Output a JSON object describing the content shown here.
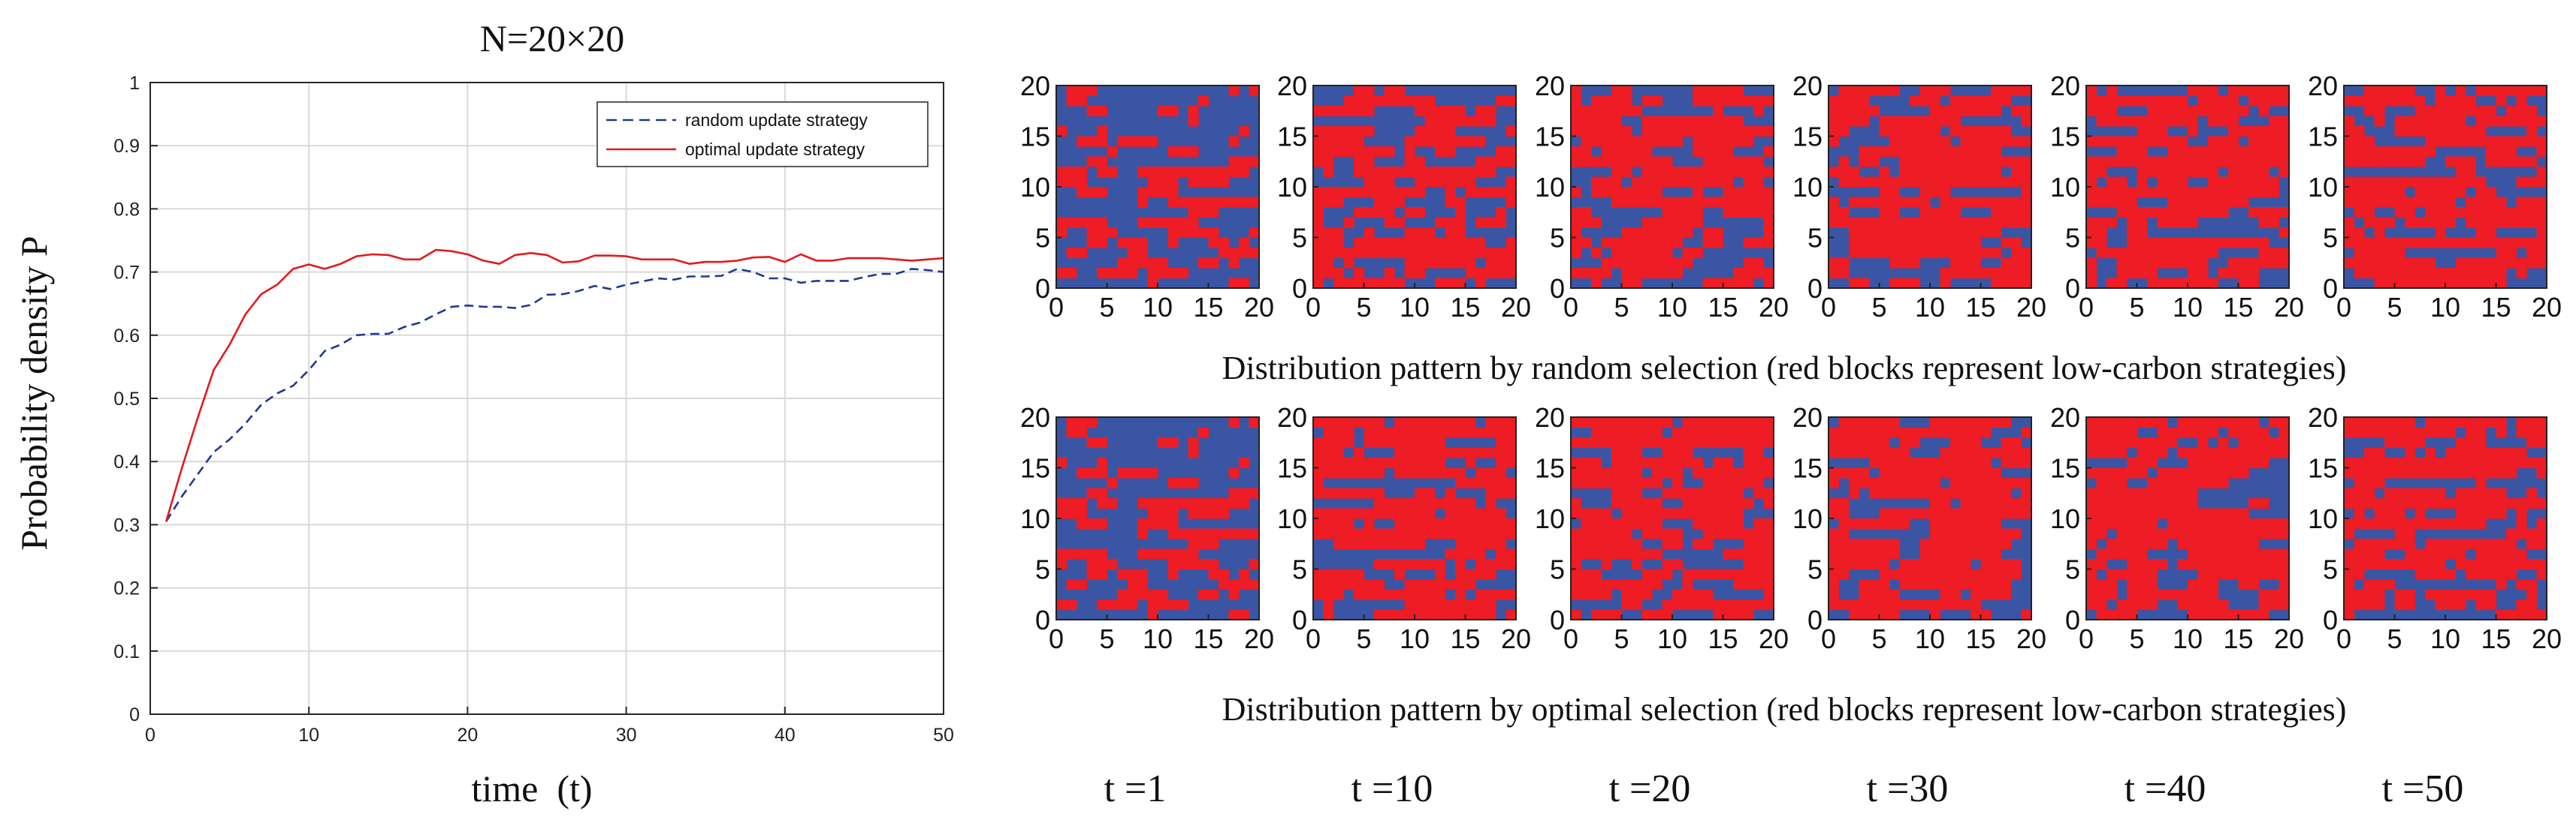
{
  "colors": {
    "red": "#ee1c24",
    "blue": "#3a55a4",
    "random_line": "#1f3a93",
    "optimal_line": "#e31a1c",
    "grid": "#d9d9d9",
    "axis": "#262626"
  },
  "chart_data": [
    {
      "type": "line",
      "title": "N=20×20",
      "xlabel": "time  (t)",
      "ylabel": "Probability density P",
      "xlim": [
        0,
        50
      ],
      "ylim": [
        0,
        1
      ],
      "grid": true,
      "legend_position": "top-right",
      "xticks": [
        0,
        10,
        20,
        30,
        40,
        50
      ],
      "yticks": [
        0,
        0.1,
        0.2,
        0.3,
        0.4,
        0.5,
        0.6,
        0.7,
        0.8,
        0.9,
        1
      ],
      "x": [
        1,
        2,
        3,
        4,
        5,
        6,
        7,
        8,
        9,
        10,
        11,
        12,
        13,
        14,
        15,
        16,
        17,
        18,
        19,
        20,
        21,
        22,
        23,
        24,
        25,
        26,
        27,
        28,
        29,
        30,
        31,
        32,
        33,
        34,
        35,
        36,
        37,
        38,
        39,
        40,
        41,
        42,
        43,
        44,
        45,
        46,
        47,
        48,
        49,
        50
      ],
      "series": [
        {
          "name": "random update strategy",
          "style": "dashed",
          "values": [
            0.305,
            0.345,
            0.38,
            0.415,
            0.435,
            0.46,
            0.49,
            0.508,
            0.52,
            0.545,
            0.575,
            0.585,
            0.6,
            0.602,
            0.602,
            0.613,
            0.62,
            0.633,
            0.645,
            0.647,
            0.645,
            0.645,
            0.643,
            0.648,
            0.664,
            0.665,
            0.67,
            0.678,
            0.673,
            0.68,
            0.685,
            0.69,
            0.688,
            0.693,
            0.693,
            0.694,
            0.705,
            0.7,
            0.69,
            0.69,
            0.683,
            0.686,
            0.686,
            0.686,
            0.692,
            0.697,
            0.697,
            0.705,
            0.703,
            0.7
          ]
        },
        {
          "name": "optimal update strategy",
          "style": "solid",
          "values": [
            0.305,
            0.39,
            0.47,
            0.545,
            0.585,
            0.633,
            0.665,
            0.68,
            0.705,
            0.712,
            0.705,
            0.713,
            0.725,
            0.728,
            0.727,
            0.72,
            0.72,
            0.735,
            0.733,
            0.728,
            0.718,
            0.713,
            0.727,
            0.73,
            0.727,
            0.715,
            0.717,
            0.726,
            0.726,
            0.725,
            0.72,
            0.72,
            0.72,
            0.713,
            0.716,
            0.716,
            0.718,
            0.723,
            0.724,
            0.716,
            0.728,
            0.718,
            0.718,
            0.722,
            0.722,
            0.722,
            0.72,
            0.718,
            0.72,
            0.722
          ]
        }
      ]
    },
    {
      "type": "heatmap",
      "title": "Distribution pattern by random selection (red blocks represent low-carbon strategies)",
      "xlim": [
        0,
        20
      ],
      "ylim": [
        0,
        20
      ],
      "xticks": [
        0,
        5,
        10,
        15,
        20
      ],
      "yticks": [
        0,
        5,
        10,
        15,
        20
      ],
      "legend": "red = low-carbon strategy, blue = other",
      "time_labels": [
        "t =1",
        "t =10",
        "t =20",
        "t =30",
        "t =40",
        "t =50"
      ],
      "low_carbon_fraction": [
        0.305,
        0.545,
        0.647,
        0.68,
        0.69,
        0.7
      ],
      "seeds": [
        11,
        23,
        37,
        41,
        53,
        67
      ]
    },
    {
      "type": "heatmap",
      "title": "Distribution pattern by optimal selection (red blocks represent low-carbon strategies)",
      "xlim": [
        0,
        20
      ],
      "ylim": [
        0,
        20
      ],
      "xticks": [
        0,
        5,
        10,
        15,
        20
      ],
      "yticks": [
        0,
        5,
        10,
        15,
        20
      ],
      "legend": "red = low-carbon strategy, blue = other",
      "time_labels": [
        "t =1",
        "t =10",
        "t =20",
        "t =30",
        "t =40",
        "t =50"
      ],
      "low_carbon_fraction": [
        0.305,
        0.712,
        0.728,
        0.725,
        0.716,
        0.722
      ],
      "seeds": [
        11,
        71,
        83,
        97,
        101,
        113
      ]
    }
  ],
  "time_labels": [
    "t =1",
    "t =10",
    "t =20",
    "t =30",
    "t =40",
    "t =50"
  ]
}
